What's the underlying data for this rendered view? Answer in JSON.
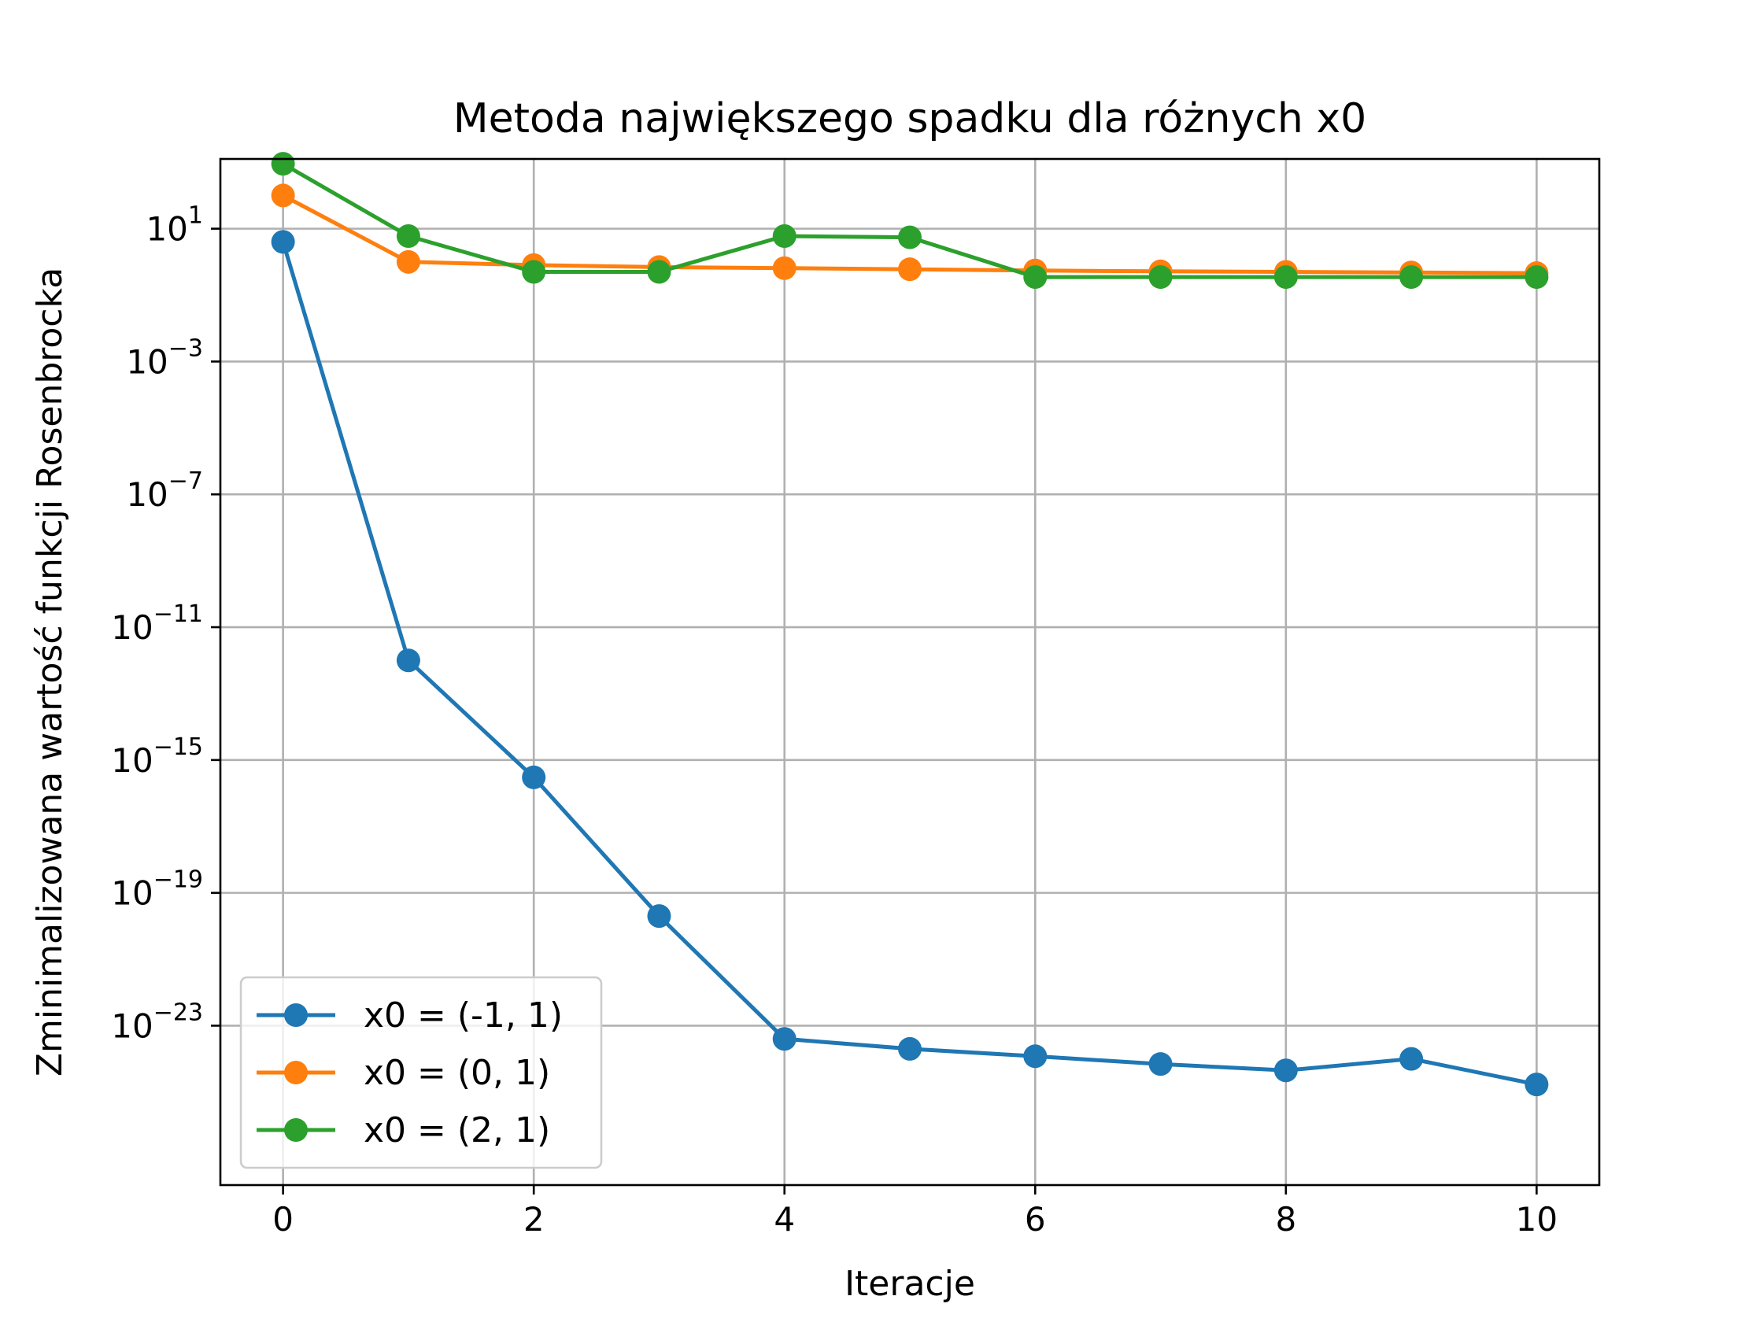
{
  "chart_data": {
    "type": "line",
    "title": "Metoda największego spadku dla różnych x0",
    "xlabel": "Iteracje",
    "ylabel": "Zminimalizowana wartość funkcji Rosenbrocka",
    "yscale": "log",
    "xlim": [
      -0.5,
      10.5
    ],
    "ylim_exp": [
      -27.8,
      3.1
    ],
    "x_ticks": [
      0,
      2,
      4,
      6,
      8,
      10
    ],
    "x_tick_labels": [
      "0",
      "2",
      "4",
      "6",
      "8",
      "10"
    ],
    "y_tick_exponents": [
      1,
      -3,
      -7,
      -11,
      -15,
      -19,
      -23
    ],
    "y_tick_labels": [
      {
        "base": "10",
        "exp": "1"
      },
      {
        "base": "10",
        "exp": "−3"
      },
      {
        "base": "10",
        "exp": "−7"
      },
      {
        "base": "10",
        "exp": "−11"
      },
      {
        "base": "10",
        "exp": "−15"
      },
      {
        "base": "10",
        "exp": "−19"
      },
      {
        "base": "10",
        "exp": "−23"
      }
    ],
    "grid": true,
    "legend_position": "lower-left",
    "x": [
      0,
      1,
      2,
      3,
      4,
      5,
      6,
      7,
      8,
      9,
      10
    ],
    "series": [
      {
        "name": "x0 = (-1, 1)",
        "color": "#1f77b4",
        "values": [
          4,
          1e-12,
          3e-16,
          2e-20,
          4e-24,
          2e-24,
          1.2e-24,
          7e-25,
          4.5e-25,
          1e-24,
          1.7e-25
        ]
      },
      {
        "name": "x0 = (0, 1)",
        "color": "#ff7f0e",
        "values": [
          100,
          1,
          0.8,
          0.7,
          0.65,
          0.6,
          0.55,
          0.52,
          0.5,
          0.48,
          0.46
        ]
      },
      {
        "name": "x0 = (2, 1)",
        "color": "#2ca02c",
        "values": [
          900,
          6,
          0.5,
          0.5,
          6,
          5.5,
          0.35,
          0.35,
          0.35,
          0.35,
          0.35
        ]
      }
    ]
  }
}
